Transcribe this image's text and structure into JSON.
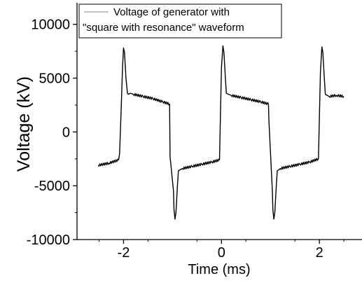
{
  "chart_data": {
    "type": "line",
    "title": "",
    "xlabel": "Time (ms)",
    "ylabel": "Voltage (kV)",
    "xlim": [
      -2.95,
      2.87
    ],
    "ylim": [
      -10000,
      12000
    ],
    "x_ticks": [
      -2,
      0,
      2
    ],
    "x_tick_labels": [
      "-2",
      "0",
      "2"
    ],
    "y_ticks": [
      -10000,
      -5000,
      0,
      5000,
      10000
    ],
    "y_tick_labels": [
      "-10000",
      "-5000",
      "0",
      "5000",
      "10000"
    ],
    "grid": false,
    "legend_position": "top-left",
    "series": [
      {
        "name": "Voltage of generator with \"square with resonance\" waveform",
        "color": "#000000",
        "x": [
          -2.52,
          -2.3,
          -2.1,
          -2.08,
          -2.05,
          -2.02,
          -2.0,
          -1.98,
          -1.95,
          -1.92,
          -1.9,
          -1.86,
          -1.8,
          -1.6,
          -1.4,
          -1.2,
          -1.06,
          -1.05,
          -0.98,
          -0.97,
          -0.95,
          -0.93,
          -0.9,
          -0.88,
          -0.84,
          -0.8,
          -0.6,
          -0.4,
          -0.2,
          -0.04,
          -0.02,
          0.0,
          0.03,
          0.05,
          0.08,
          0.1,
          0.14,
          0.2,
          0.4,
          0.6,
          0.8,
          0.96,
          0.97,
          1.04,
          1.05,
          1.07,
          1.09,
          1.12,
          1.14,
          1.18,
          1.2,
          1.4,
          1.6,
          1.8,
          1.98,
          2.0,
          2.02,
          2.05,
          2.07,
          2.1,
          2.12,
          2.16,
          2.2,
          2.35,
          2.5
        ],
        "y": [
          -3100,
          -2900,
          -2600,
          -2000,
          1800,
          6000,
          7800,
          7400,
          5000,
          3600,
          3500,
          3600,
          3500,
          3300,
          3100,
          2800,
          2600,
          -2300,
          -5500,
          -7200,
          -8100,
          -7500,
          -5000,
          -3600,
          -3500,
          -3400,
          -3200,
          -3000,
          -2800,
          -2600,
          1800,
          6000,
          8000,
          7400,
          5000,
          3600,
          3500,
          3400,
          3200,
          3000,
          2800,
          2600,
          1000,
          -5500,
          -7200,
          -8100,
          -7500,
          -5000,
          -3600,
          -3500,
          -3400,
          -3200,
          -3000,
          -2800,
          -2500,
          1500,
          5500,
          7900,
          7400,
          5000,
          3500,
          3400,
          3300,
          3400,
          3300
        ]
      }
    ]
  }
}
